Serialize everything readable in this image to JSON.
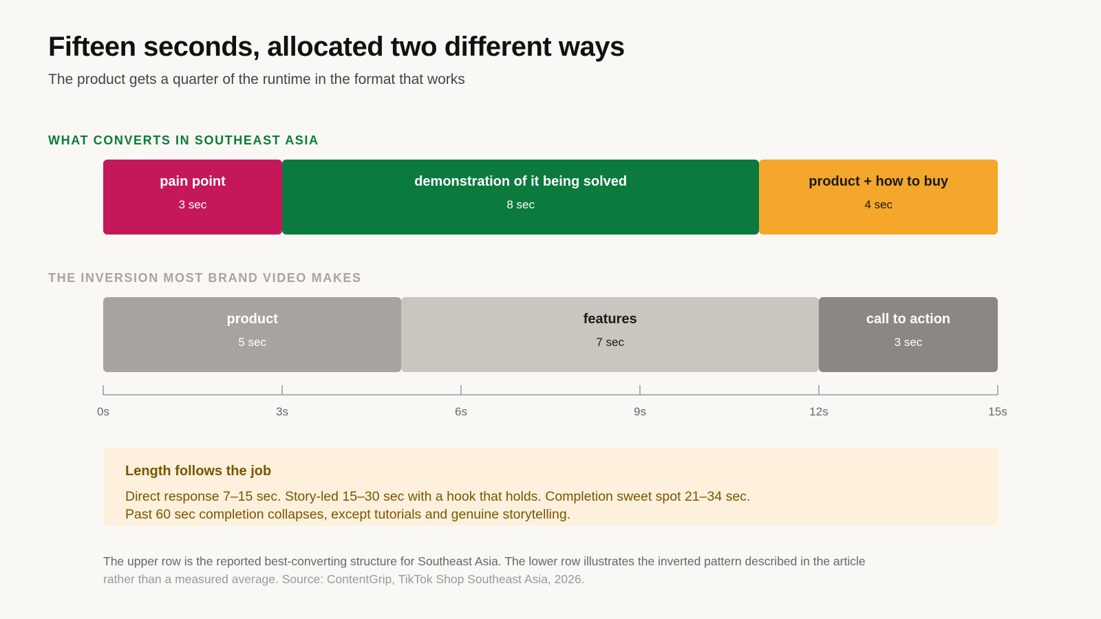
{
  "title": "Fifteen seconds, allocated two different ways",
  "subtitle": "The product gets a quarter of the runtime in the format that works",
  "callout": {
    "title": "Length follows the job",
    "lines": [
      "Direct response 7–15 sec. Story-led 15–30 sec with a hook that holds. Completion sweet spot 21–34 sec.",
      "Past 60 sec completion collapses, except tutorials and genuine storytelling."
    ]
  },
  "footnote": {
    "line1": "The upper row is the reported best-converting structure for Southeast Asia. The lower row illustrates the inverted pattern described in the article",
    "line2": "rather than a measured average. Source: ContentGrip, TikTok Shop Southeast Asia, 2026."
  },
  "chart_data": {
    "type": "bar",
    "orientation": "horizontal-stacked",
    "xlim": [
      0,
      15
    ],
    "xticks": [
      0,
      3,
      6,
      9,
      12,
      15
    ],
    "xtick_labels": [
      "0s",
      "3s",
      "6s",
      "9s",
      "12s",
      "15s"
    ],
    "rows": [
      {
        "label": "WHAT CONVERTS IN SOUTHEAST ASIA",
        "label_color": "#0b7a3e",
        "segments": [
          {
            "label": "pain point",
            "duration_label": "3 sec",
            "value": 3,
            "color": "#c4185a",
            "text_color": "#ffffff"
          },
          {
            "label": "demonstration of it being solved",
            "duration_label": "8 sec",
            "value": 8,
            "color": "#0b7a3e",
            "text_color": "#ffffff"
          },
          {
            "label": "product + how to buy",
            "duration_label": "4 sec",
            "value": 4,
            "color": "#f4a72a",
            "text_color": "#1a1a1a"
          }
        ]
      },
      {
        "label": "THE INVERSION MOST BRAND VIDEO MAKES",
        "label_color": "#aaa49f",
        "segments": [
          {
            "label": "product",
            "duration_label": "5 sec",
            "value": 5,
            "color": "#a8a39e",
            "text_color": "#ffffff"
          },
          {
            "label": "features",
            "duration_label": "7 sec",
            "value": 7,
            "color": "#c9c5bf",
            "text_color": "#1a1a1a"
          },
          {
            "label": "call to action",
            "duration_label": "3 sec",
            "value": 3,
            "color": "#8c8782",
            "text_color": "#ffffff"
          }
        ]
      }
    ]
  }
}
